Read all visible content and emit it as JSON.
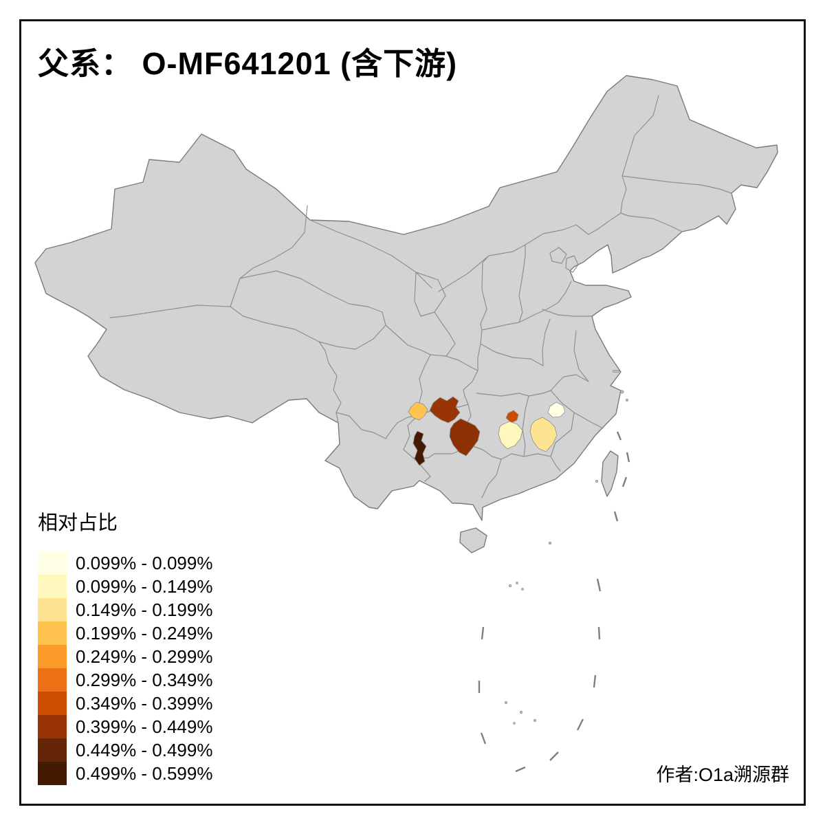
{
  "title": "父系： O-MF641201 (含下游)",
  "legend": {
    "title": "相对占比",
    "items": [
      {
        "range": "0.099% - 0.099%",
        "color": "#FFFFE5"
      },
      {
        "range": "0.099% - 0.149%",
        "color": "#FFF7BC"
      },
      {
        "range": "0.149% - 0.199%",
        "color": "#FEE391"
      },
      {
        "range": "0.199% - 0.249%",
        "color": "#FEC44F"
      },
      {
        "range": "0.249% - 0.299%",
        "color": "#FB9A29"
      },
      {
        "range": "0.299% - 0.349%",
        "color": "#EC7014"
      },
      {
        "range": "0.349% - 0.399%",
        "color": "#CC4C02"
      },
      {
        "range": "0.399% - 0.449%",
        "color": "#993404"
      },
      {
        "range": "0.449% - 0.499%",
        "color": "#662506"
      },
      {
        "range": "0.499% - 0.599%",
        "color": "#451A03"
      }
    ]
  },
  "credit": "作者:O1a溯源群",
  "map": {
    "base_fill": "#d3d3d3",
    "border_color": "#8f8f8f",
    "highlighted_regions": [
      {
        "id": "region-1",
        "color": "#FEC44F",
        "range": "0.199% - 0.249%"
      },
      {
        "id": "region-2",
        "color": "#993404",
        "range": "0.399% - 0.449%"
      },
      {
        "id": "region-3",
        "color": "#8D3104",
        "range": "0.399% - 0.449%"
      },
      {
        "id": "region-4",
        "color": "#451A03",
        "range": "0.499% - 0.599%"
      },
      {
        "id": "region-5",
        "color": "#CC4C02",
        "range": "0.349% - 0.399%"
      },
      {
        "id": "region-6",
        "color": "#FFF7BC",
        "range": "0.099% - 0.149%"
      },
      {
        "id": "region-7",
        "color": "#FEE391",
        "range": "0.149% - 0.199%"
      },
      {
        "id": "region-8",
        "color": "#FFFFE5",
        "range": "0.099% - 0.099%"
      }
    ]
  },
  "chart_data": {
    "type": "choropleth_map",
    "title": "父系： O-MF641201 (含下游)",
    "legend_title": "相对占比",
    "legend_position": "bottom-left",
    "base_region": "China (provinces shown in gray)",
    "classes": [
      {
        "range": "0.099% - 0.099%",
        "color": "#FFFFE5"
      },
      {
        "range": "0.099% - 0.149%",
        "color": "#FFF7BC"
      },
      {
        "range": "0.149% - 0.199%",
        "color": "#FEE391"
      },
      {
        "range": "0.199% - 0.249%",
        "color": "#FEC44F"
      },
      {
        "range": "0.249% - 0.299%",
        "color": "#FB9A29"
      },
      {
        "range": "0.299% - 0.349%",
        "color": "#EC7014"
      },
      {
        "range": "0.349% - 0.399%",
        "color": "#CC4C02"
      },
      {
        "range": "0.399% - 0.449%",
        "color": "#993404"
      },
      {
        "range": "0.449% - 0.499%",
        "color": "#662506"
      },
      {
        "range": "0.499% - 0.599%",
        "color": "#451A03"
      }
    ],
    "highlighted_regions": [
      {
        "id": "region-1",
        "approx_location": "south-central China (west)",
        "value_range": "0.199% - 0.249%"
      },
      {
        "id": "region-2",
        "approx_location": "south-central China",
        "value_range": "0.399% - 0.449%"
      },
      {
        "id": "region-3",
        "approx_location": "south-central China (southeast of region-2)",
        "value_range": "0.399% - 0.449%"
      },
      {
        "id": "region-4",
        "approx_location": "south-central China (small, darkest)",
        "value_range": "0.499% - 0.599%"
      },
      {
        "id": "region-5",
        "approx_location": "central-south China (small orange)",
        "value_range": "0.349% - 0.399%"
      },
      {
        "id": "region-6",
        "approx_location": "central-south China (pale)",
        "value_range": "0.099% - 0.149%"
      },
      {
        "id": "region-7",
        "approx_location": "southeastern inland China (light yellow)",
        "value_range": "0.149% - 0.199%"
      },
      {
        "id": "region-8",
        "approx_location": "southeastern inland China (palest)",
        "value_range": "0.099% - 0.099%"
      }
    ],
    "credit": "作者:O1a溯源群"
  }
}
